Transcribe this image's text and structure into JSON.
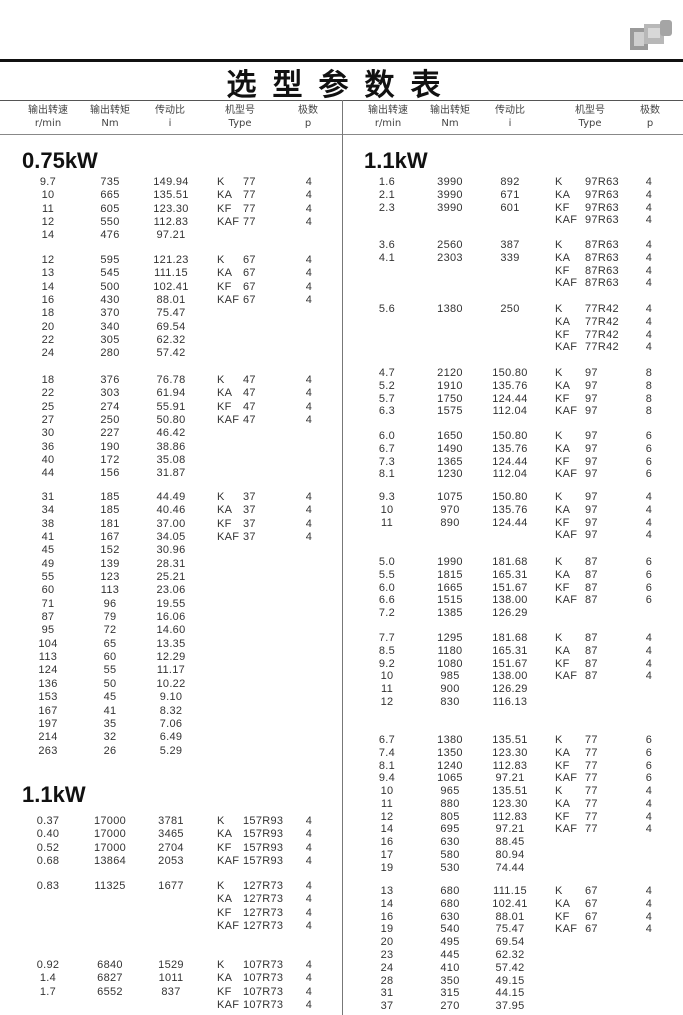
{
  "title": "选型参数表",
  "photo_icon": "gear-motor-photo",
  "headers": [
    {
      "cn": "输出转速",
      "unit": "r/min"
    },
    {
      "cn": "输出转矩",
      "unit": "Nm"
    },
    {
      "cn": "传动比",
      "unit": "i"
    },
    {
      "cn": "机型号",
      "unit": "Type"
    },
    {
      "cn": "极数",
      "unit": "p"
    }
  ],
  "left": {
    "sections": [
      {
        "power": "0.75kW",
        "groups": [
          {
            "rows": [
              [
                "9.7",
                "735",
                "149.94"
              ],
              [
                "10",
                "665",
                "135.51"
              ],
              [
                "11",
                "605",
                "123.30"
              ],
              [
                "12",
                "550",
                "112.83"
              ],
              [
                "14",
                "476",
                "97.21"
              ]
            ],
            "types": [
              [
                "K",
                "77",
                "4"
              ],
              [
                "KA",
                "77",
                "4"
              ],
              [
                "KF",
                "77",
                "4"
              ],
              [
                "KAF",
                "77",
                "4"
              ]
            ]
          },
          {
            "rows": [
              [
                "12",
                "595",
                "121.23"
              ],
              [
                "13",
                "545",
                "111.15"
              ],
              [
                "14",
                "500",
                "102.41"
              ],
              [
                "16",
                "430",
                "88.01"
              ],
              [
                "18",
                "370",
                "75.47"
              ],
              [
                "20",
                "340",
                "69.54"
              ],
              [
                "22",
                "305",
                "62.32"
              ],
              [
                "24",
                "280",
                "57.42"
              ]
            ],
            "types": [
              [
                "K",
                "67",
                "4"
              ],
              [
                "KA",
                "67",
                "4"
              ],
              [
                "KF",
                "67",
                "4"
              ],
              [
                "KAF",
                "67",
                "4"
              ]
            ]
          },
          {
            "rows": [
              [
                "18",
                "376",
                "76.78"
              ],
              [
                "22",
                "303",
                "61.94"
              ],
              [
                "25",
                "274",
                "55.91"
              ],
              [
                "27",
                "250",
                "50.80"
              ],
              [
                "30",
                "227",
                "46.42"
              ],
              [
                "36",
                "190",
                "38.86"
              ],
              [
                "40",
                "172",
                "35.08"
              ],
              [
                "44",
                "156",
                "31.87"
              ]
            ],
            "types": [
              [
                "K",
                "47",
                "4"
              ],
              [
                "KA",
                "47",
                "4"
              ],
              [
                "KF",
                "47",
                "4"
              ],
              [
                "KAF",
                "47",
                "4"
              ]
            ]
          },
          {
            "rows": [
              [
                "31",
                "185",
                "44.49"
              ],
              [
                "34",
                "185",
                "40.46"
              ],
              [
                "38",
                "181",
                "37.00"
              ],
              [
                "41",
                "167",
                "34.05"
              ],
              [
                "45",
                "152",
                "30.96"
              ],
              [
                "49",
                "139",
                "28.31"
              ],
              [
                "55",
                "123",
                "25.21"
              ],
              [
                "60",
                "113",
                "23.06"
              ],
              [
                "71",
                "96",
                "19.55"
              ],
              [
                "87",
                "79",
                "16.06"
              ],
              [
                "95",
                "72",
                "14.60"
              ],
              [
                "104",
                "65",
                "13.35"
              ],
              [
                "113",
                "60",
                "12.29"
              ],
              [
                "124",
                "55",
                "11.17"
              ],
              [
                "136",
                "50",
                "10.22"
              ],
              [
                "153",
                "45",
                "9.10"
              ],
              [
                "167",
                "41",
                "8.32"
              ],
              [
                "197",
                "35",
                "7.06"
              ],
              [
                "214",
                "32",
                "6.49"
              ],
              [
                "263",
                "26",
                "5.29"
              ]
            ],
            "types": [
              [
                "K",
                "37",
                "4"
              ],
              [
                "KA",
                "37",
                "4"
              ],
              [
                "KF",
                "37",
                "4"
              ],
              [
                "KAF",
                "37",
                "4"
              ]
            ]
          }
        ]
      },
      {
        "power": "1.1kW",
        "groups": [
          {
            "rows": [
              [
                "0.37",
                "17000",
                "3781"
              ],
              [
                "0.40",
                "17000",
                "3465"
              ],
              [
                "0.52",
                "17000",
                "2704"
              ],
              [
                "0.68",
                "13864",
                "2053"
              ]
            ],
            "types": [
              [
                "K",
                "157R93",
                "4"
              ],
              [
                "KA",
                "157R93",
                "4"
              ],
              [
                "KF",
                "157R93",
                "4"
              ],
              [
                "KAF",
                "157R93",
                "4"
              ]
            ]
          },
          {
            "rows": [
              [
                "0.83",
                "11325",
                "1677"
              ]
            ],
            "types": [
              [
                "K",
                "127R73",
                "4"
              ],
              [
                "KA",
                "127R73",
                "4"
              ],
              [
                "KF",
                "127R73",
                "4"
              ],
              [
                "KAF",
                "127R73",
                "4"
              ]
            ]
          },
          {
            "rows": [
              [
                "0.92",
                "6840",
                "1529"
              ],
              [
                "1.4",
                "6827",
                "1011"
              ],
              [
                "1.7",
                "6552",
                "837"
              ]
            ],
            "types": [
              [
                "K",
                "107R73",
                "4"
              ],
              [
                "KA",
                "107R73",
                "4"
              ],
              [
                "KF",
                "107R73",
                "4"
              ],
              [
                "KAF",
                "107R73",
                "4"
              ]
            ]
          }
        ]
      }
    ]
  },
  "right": {
    "sections": [
      {
        "power": "1.1kW",
        "groups": [
          {
            "rows": [
              [
                "1.6",
                "3990",
                "892"
              ],
              [
                "2.1",
                "3990",
                "671"
              ],
              [
                "2.3",
                "3990",
                "601"
              ]
            ],
            "types": [
              [
                "K",
                "97R63",
                "4"
              ],
              [
                "KA",
                "97R63",
                "4"
              ],
              [
                "KF",
                "97R63",
                "4"
              ],
              [
                "KAF",
                "97R63",
                "4"
              ]
            ]
          },
          {
            "rows": [
              [
                "3.6",
                "2560",
                "387"
              ],
              [
                "4.1",
                "2303",
                "339"
              ]
            ],
            "types": [
              [
                "K",
                "87R63",
                "4"
              ],
              [
                "KA",
                "87R63",
                "4"
              ],
              [
                "KF",
                "87R63",
                "4"
              ],
              [
                "KAF",
                "87R63",
                "4"
              ]
            ]
          },
          {
            "rows": [
              [
                "5.6",
                "1380",
                "250"
              ]
            ],
            "types": [
              [
                "K",
                "77R42",
                "4"
              ],
              [
                "KA",
                "77R42",
                "4"
              ],
              [
                "KF",
                "77R42",
                "4"
              ],
              [
                "KAF",
                "77R42",
                "4"
              ]
            ]
          },
          {
            "rows": [
              [
                "4.7",
                "2120",
                "150.80"
              ],
              [
                "5.2",
                "1910",
                "135.76"
              ],
              [
                "5.7",
                "1750",
                "124.44"
              ],
              [
                "6.3",
                "1575",
                "112.04"
              ]
            ],
            "types": [
              [
                "K",
                "97",
                "8"
              ],
              [
                "KA",
                "97",
                "8"
              ],
              [
                "KF",
                "97",
                "8"
              ],
              [
                "KAF",
                "97",
                "8"
              ]
            ]
          },
          {
            "rows": [
              [
                "6.0",
                "1650",
                "150.80"
              ],
              [
                "6.7",
                "1490",
                "135.76"
              ],
              [
                "7.3",
                "1365",
                "124.44"
              ],
              [
                "8.1",
                "1230",
                "112.04"
              ]
            ],
            "types": [
              [
                "K",
                "97",
                "6"
              ],
              [
                "KA",
                "97",
                "6"
              ],
              [
                "KF",
                "97",
                "6"
              ],
              [
                "KAF",
                "97",
                "6"
              ]
            ]
          },
          {
            "rows": [
              [
                "9.3",
                "1075",
                "150.80"
              ],
              [
                "10",
                "970",
                "135.76"
              ],
              [
                "11",
                "890",
                "124.44"
              ]
            ],
            "types": [
              [
                "K",
                "97",
                "4"
              ],
              [
                "KA",
                "97",
                "4"
              ],
              [
                "KF",
                "97",
                "4"
              ],
              [
                "KAF",
                "97",
                "4"
              ]
            ]
          },
          {
            "rows": [
              [
                "5.0",
                "1990",
                "181.68"
              ],
              [
                "5.5",
                "1815",
                "165.31"
              ],
              [
                "6.0",
                "1665",
                "151.67"
              ],
              [
                "6.6",
                "1515",
                "138.00"
              ],
              [
                "7.2",
                "1385",
                "126.29"
              ]
            ],
            "types": [
              [
                "K",
                "87",
                "6"
              ],
              [
                "KA",
                "87",
                "6"
              ],
              [
                "KF",
                "87",
                "6"
              ],
              [
                "KAF",
                "87",
                "6"
              ]
            ]
          },
          {
            "rows": [
              [
                "7.7",
                "1295",
                "181.68"
              ],
              [
                "8.5",
                "1180",
                "165.31"
              ],
              [
                "9.2",
                "1080",
                "151.67"
              ],
              [
                "10",
                "985",
                "138.00"
              ],
              [
                "11",
                "900",
                "126.29"
              ],
              [
                "12",
                "830",
                "116.13"
              ]
            ],
            "types": [
              [
                "K",
                "87",
                "4"
              ],
              [
                "KA",
                "87",
                "4"
              ],
              [
                "KF",
                "87",
                "4"
              ],
              [
                "KAF",
                "87",
                "4"
              ]
            ]
          },
          {
            "rows": [
              [
                "6.7",
                "1380",
                "135.51"
              ],
              [
                "7.4",
                "1350",
                "123.30"
              ],
              [
                "8.1",
                "1240",
                "112.83"
              ],
              [
                "9.4",
                "1065",
                "97.21"
              ]
            ],
            "types": [
              [
                "K",
                "77",
                "6"
              ],
              [
                "KA",
                "77",
                "6"
              ],
              [
                "KF",
                "77",
                "6"
              ],
              [
                "KAF",
                "77",
                "6"
              ]
            ]
          },
          {
            "rows": [
              [
                "10",
                "965",
                "135.51"
              ],
              [
                "11",
                "880",
                "123.30"
              ],
              [
                "12",
                "805",
                "112.83"
              ],
              [
                "14",
                "695",
                "97.21"
              ],
              [
                "16",
                "630",
                "88.45"
              ],
              [
                "17",
                "580",
                "80.94"
              ],
              [
                "19",
                "530",
                "74.44"
              ]
            ],
            "types": [
              [
                "K",
                "77",
                "4"
              ],
              [
                "KA",
                "77",
                "4"
              ],
              [
                "KF",
                "77",
                "4"
              ],
              [
                "KAF",
                "77",
                "4"
              ]
            ]
          },
          {
            "rows": [
              [
                "13",
                "680",
                "111.15"
              ],
              [
                "14",
                "680",
                "102.41"
              ],
              [
                "16",
                "630",
                "88.01"
              ],
              [
                "19",
                "540",
                "75.47"
              ],
              [
                "20",
                "495",
                "69.54"
              ],
              [
                "23",
                "445",
                "62.32"
              ],
              [
                "24",
                "410",
                "57.42"
              ],
              [
                "28",
                "350",
                "49.15"
              ],
              [
                "31",
                "315",
                "44.15"
              ],
              [
                "37",
                "270",
                "37.95"
              ]
            ],
            "types": [
              [
                "K",
                "67",
                "4"
              ],
              [
                "KA",
                "67",
                "4"
              ],
              [
                "KF",
                "67",
                "4"
              ],
              [
                "KAF",
                "67",
                "4"
              ]
            ]
          }
        ]
      }
    ]
  }
}
